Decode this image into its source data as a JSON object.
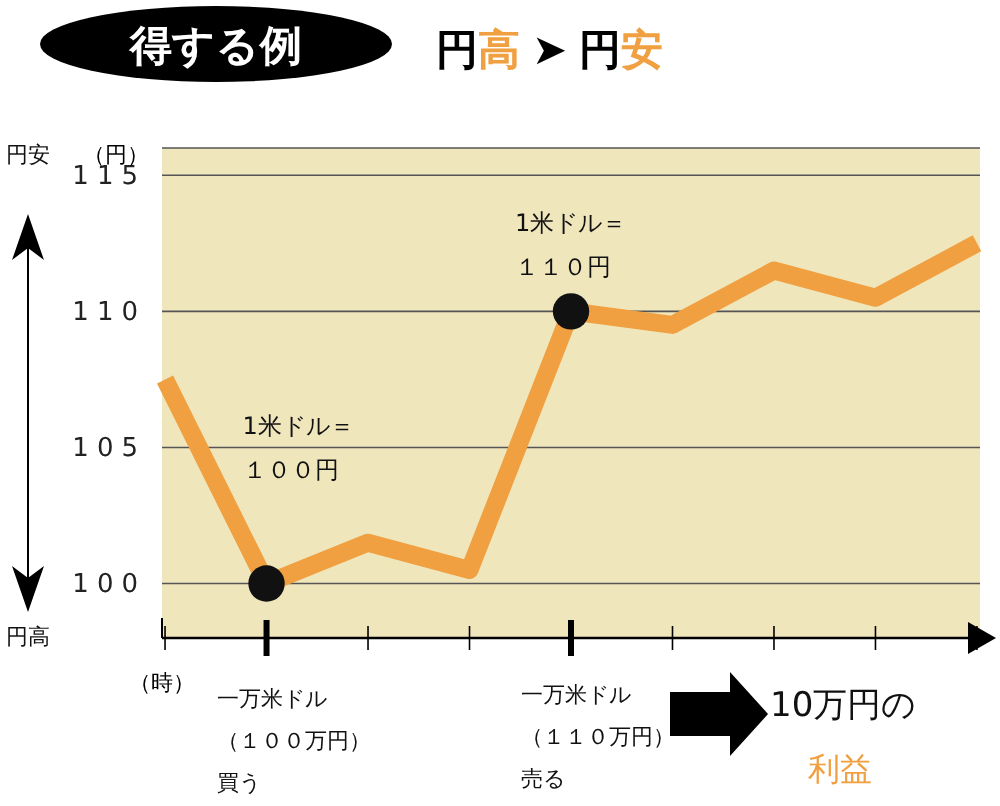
{
  "chart_data": {
    "type": "line",
    "title": "得する例",
    "subtitle": "円高 ➤ 円安",
    "xlabel": "（時）",
    "ylabel": "（円）",
    "categories": [
      null,
      null,
      null,
      null,
      null,
      null,
      null,
      null,
      null
    ],
    "series": [
      {
        "color": "#f0a040",
        "values": [
          107.5,
          100,
          101.5,
          100.5,
          110,
          109.5,
          111.5,
          110.5,
          112.5
        ]
      },
      {
        "type": "scatter",
        "color": "#111111",
        "marker": "circle",
        "values": [
          null,
          100,
          null,
          null,
          110,
          null,
          null,
          null,
          null
        ]
      }
    ],
    "ylim": [
      98,
      116
    ],
    "yticks": [
      100,
      105,
      110,
      115
    ],
    "grid": "y",
    "tick_labels": "y",
    "legend": false,
    "annotations": [
      "1米ドル＝",
      "１００円",
      "1米ドル＝",
      "１１０円",
      "一万米ドル",
      "（１００万円）",
      "買う",
      "一万米ドル",
      "（１１０万円）",
      "売る",
      "10万円の",
      "利益",
      "円安",
      "円高"
    ]
  }
}
